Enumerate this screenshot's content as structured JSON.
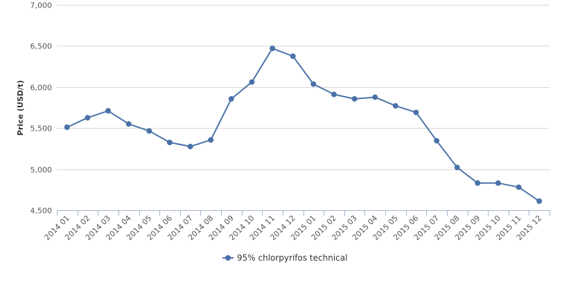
{
  "chart_data": {
    "type": "line",
    "title": "",
    "xlabel": "",
    "ylabel": "Price (USD/t)",
    "categories": [
      "2014 01",
      "2014 02",
      "2014 03",
      "2014 04",
      "2014 05",
      "2014 06",
      "2014 07",
      "2014 08",
      "2014 09",
      "2014 10",
      "2014 11",
      "2014 12",
      "2015 01",
      "2015 02",
      "2015 03",
      "2015 04",
      "2015 05",
      "2015 06",
      "2015 07",
      "2015 08",
      "2015 09",
      "2015 10",
      "2015 11",
      "2015 12"
    ],
    "series": [
      {
        "name": "95% chlorpyrifos technical",
        "color": "#4a72a8",
        "values": [
          5510,
          5625,
          5710,
          5550,
          5465,
          5325,
          5275,
          5355,
          5855,
          6060,
          6470,
          6375,
          6035,
          5910,
          5855,
          5875,
          5770,
          5690,
          5345,
          5020,
          4830,
          4830,
          4780,
          4610
        ]
      }
    ],
    "ylim": [
      4500,
      7000
    ],
    "yticks": [
      4500,
      5000,
      5500,
      6000,
      6500,
      7000
    ],
    "ytick_labels": [
      "4,500",
      "5,000",
      "5,500",
      "6,000",
      "6,500",
      "7,000"
    ],
    "grid": true,
    "legend": "bottom-center"
  }
}
